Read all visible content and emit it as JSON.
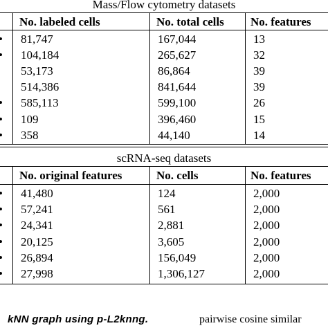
{
  "table1": {
    "title": "Mass/Flow cytometry datasets",
    "first_col_header": ".",
    "headers": [
      "No. labeled cells",
      "No. total cells",
      "No. features"
    ],
    "rows": [
      {
        "marker": "•",
        "c1": "81,747",
        "c2": "167,044",
        "c3": "13"
      },
      {
        "marker": "•",
        "c1": "104,184",
        "c2": "265,627",
        "c3": "32"
      },
      {
        "marker": "",
        "c1": "53,173",
        "c2": "86,864",
        "c3": "39"
      },
      {
        "marker": "",
        "c1": "514,386",
        "c2": "841,644",
        "c3": "39"
      },
      {
        "marker": "•",
        "c1": "585,113",
        "c2": "599,100",
        "c3": "26"
      },
      {
        "marker": "•",
        "c1": "109",
        "c2": "396,460",
        "c3": "15"
      },
      {
        "marker": "•",
        "c1": "358",
        "c2": "44,140",
        "c3": "14"
      }
    ]
  },
  "table2": {
    "title": "scRNA-seq datasets",
    "first_col_header": ".",
    "headers": [
      "No. original features",
      "No. cells",
      "No. features"
    ],
    "rows": [
      {
        "marker": "•",
        "c1": "41,480",
        "c2": "124",
        "c3": "2,000"
      },
      {
        "marker": "•",
        "c1": "57,241",
        "c2": "561",
        "c3": "2,000"
      },
      {
        "marker": "•",
        "c1": "24,341",
        "c2": "2,881",
        "c3": "2,000"
      },
      {
        "marker": "•",
        "c1": "20,125",
        "c2": "3,605",
        "c3": "2,000"
      },
      {
        "marker": "•",
        "c1": "26,894",
        "c2": "156,049",
        "c3": "2,000"
      },
      {
        "marker": "•",
        "c1": "27,998",
        "c2": "1,306,127",
        "c3": "2,000"
      }
    ]
  },
  "caption": {
    "left_text": "kNN graph using p-L2knng.",
    "right_text": "pairwise cosine similar"
  }
}
